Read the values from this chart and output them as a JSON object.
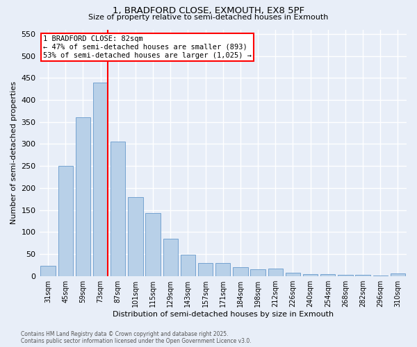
{
  "title_line1": "1, BRADFORD CLOSE, EXMOUTH, EX8 5PF",
  "title_line2": "Size of property relative to semi-detached houses in Exmouth",
  "xlabel": "Distribution of semi-detached houses by size in Exmouth",
  "ylabel": "Number of semi-detached properties",
  "categories": [
    "31sqm",
    "45sqm",
    "59sqm",
    "73sqm",
    "87sqm",
    "101sqm",
    "115sqm",
    "129sqm",
    "143sqm",
    "157sqm",
    "171sqm",
    "184sqm",
    "198sqm",
    "212sqm",
    "226sqm",
    "240sqm",
    "254sqm",
    "268sqm",
    "282sqm",
    "296sqm",
    "310sqm"
  ],
  "values": [
    23,
    250,
    360,
    440,
    305,
    180,
    143,
    85,
    48,
    29,
    29,
    20,
    16,
    17,
    7,
    5,
    5,
    3,
    2,
    1,
    6
  ],
  "bar_color": "#b8d0e8",
  "bar_edge_color": "#6699cc",
  "property_size": "82sqm",
  "pct_smaller": 47,
  "n_smaller": 893,
  "pct_larger": 53,
  "n_larger": 1025,
  "ylim": [
    0,
    560
  ],
  "yticks": [
    0,
    50,
    100,
    150,
    200,
    250,
    300,
    350,
    400,
    450,
    500,
    550
  ],
  "background_color": "#e8eef8",
  "grid_color": "#ffffff",
  "footer_line1": "Contains HM Land Registry data © Crown copyright and database right 2025.",
  "footer_line2": "Contains public sector information licensed under the Open Government Licence v3.0."
}
